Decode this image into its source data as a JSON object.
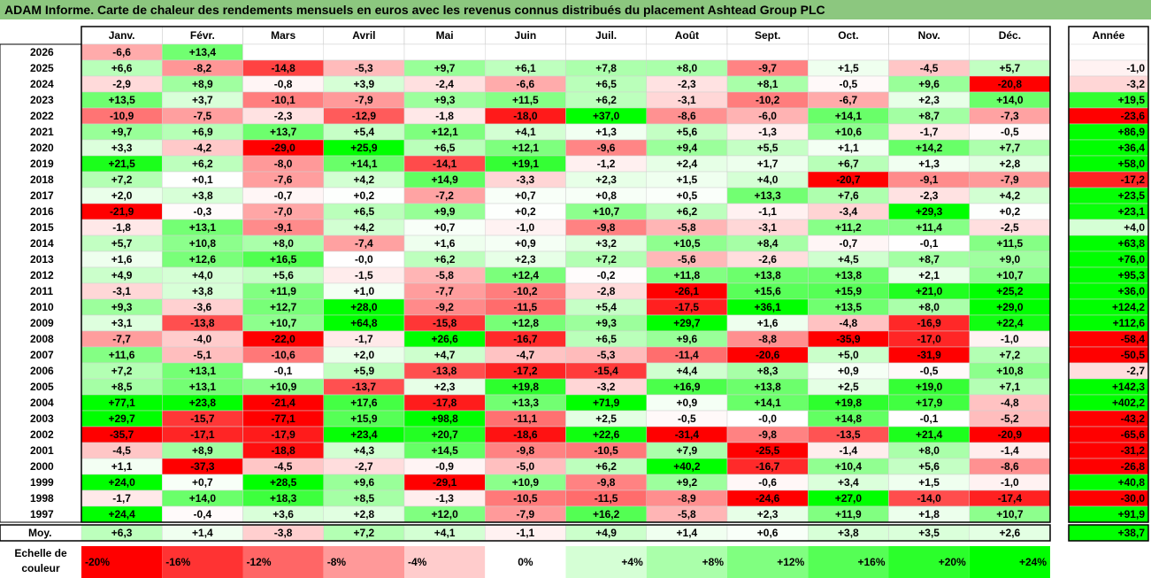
{
  "title": "ADAM Informe. Carte de chaleur des rendements mensuels en euros avec les revenus connus distribués du placement Ashtead Group PLC",
  "chart_data": {
    "type": "heatmap",
    "columns": [
      "Janv.",
      "Févr.",
      "Mars",
      "Avril",
      "Mai",
      "Juin",
      "Juil.",
      "Août",
      "Sept.",
      "Oct.",
      "Nov.",
      "Déc."
    ],
    "year_column_label": "Année",
    "average_row_label": "Moy.",
    "rows": [
      {
        "year": "2026",
        "values": [
          "-6,6",
          "+13,4",
          null,
          null,
          null,
          null,
          null,
          null,
          null,
          null,
          null,
          null
        ],
        "annual": null
      },
      {
        "year": "2025",
        "values": [
          "+6,6",
          "-8,2",
          "-14,8",
          "-5,3",
          "+9,7",
          "+6,1",
          "+7,8",
          "+8,0",
          "-9,7",
          "+1,5",
          "-4,5",
          "+5,7"
        ],
        "annual": "-1,0"
      },
      {
        "year": "2024",
        "values": [
          "-2,9",
          "+8,9",
          "-0,8",
          "+3,9",
          "-2,4",
          "-6,6",
          "+6,5",
          "-2,3",
          "+8,1",
          "-0,5",
          "+9,6",
          "-20,8"
        ],
        "annual": "-3,2"
      },
      {
        "year": "2023",
        "values": [
          "+13,5",
          "+3,7",
          "-10,1",
          "-7,9",
          "+9,3",
          "+11,5",
          "+6,2",
          "-3,1",
          "-10,2",
          "-6,7",
          "+2,3",
          "+14,0"
        ],
        "annual": "+19,5"
      },
      {
        "year": "2022",
        "values": [
          "-10,9",
          "-7,5",
          "-2,3",
          "-12,9",
          "-1,8",
          "-18,0",
          "+37,0",
          "-8,6",
          "-6,0",
          "+14,1",
          "+8,7",
          "-7,3"
        ],
        "annual": "-23,6"
      },
      {
        "year": "2021",
        "values": [
          "+9,7",
          "+6,9",
          "+13,7",
          "+5,4",
          "+12,1",
          "+4,1",
          "+1,3",
          "+5,6",
          "-1,3",
          "+10,6",
          "-1,7",
          "-0,5"
        ],
        "annual": "+86,9"
      },
      {
        "year": "2020",
        "values": [
          "+3,3",
          "-4,2",
          "-29,0",
          "+25,9",
          "+6,5",
          "+12,1",
          "-9,6",
          "+9,4",
          "+5,5",
          "+1,1",
          "+14,2",
          "+7,7"
        ],
        "annual": "+36,4"
      },
      {
        "year": "2019",
        "values": [
          "+21,5",
          "+6,2",
          "-8,0",
          "+14,1",
          "-14,1",
          "+19,1",
          "-1,2",
          "+2,4",
          "+1,7",
          "+6,7",
          "+1,3",
          "+2,8"
        ],
        "annual": "+58,0"
      },
      {
        "year": "2018",
        "values": [
          "+7,2",
          "+0,1",
          "-7,6",
          "+4,2",
          "+14,9",
          "-3,3",
          "+2,3",
          "+1,5",
          "+4,0",
          "-20,7",
          "-9,1",
          "-7,9"
        ],
        "annual": "-17,2"
      },
      {
        "year": "2017",
        "values": [
          "+2,0",
          "+3,8",
          "-0,7",
          "+0,2",
          "-7,2",
          "+0,7",
          "+0,8",
          "+0,5",
          "+13,3",
          "+7,6",
          "-2,3",
          "+4,2"
        ],
        "annual": "+23,5"
      },
      {
        "year": "2016",
        "values": [
          "-21,9",
          "-0,3",
          "-7,0",
          "+6,5",
          "+9,9",
          "+0,2",
          "+10,7",
          "+6,2",
          "-1,1",
          "-3,4",
          "+29,3",
          "+0,2"
        ],
        "annual": "+23,1"
      },
      {
        "year": "2015",
        "values": [
          "-1,8",
          "+13,1",
          "-9,1",
          "+4,2",
          "+0,7",
          "-1,0",
          "-9,8",
          "-5,8",
          "-3,1",
          "+11,2",
          "+11,4",
          "-2,5"
        ],
        "annual": "+4,0"
      },
      {
        "year": "2014",
        "values": [
          "+5,7",
          "+10,8",
          "+8,0",
          "-7,4",
          "+1,6",
          "+0,9",
          "+3,2",
          "+10,5",
          "+8,4",
          "-0,7",
          "-0,1",
          "+11,5"
        ],
        "annual": "+63,8"
      },
      {
        "year": "2013",
        "values": [
          "+1,6",
          "+12,6",
          "+16,5",
          "-0,0",
          "+6,2",
          "+2,3",
          "+7,2",
          "-5,6",
          "-2,6",
          "+4,5",
          "+8,7",
          "+9,0"
        ],
        "annual": "+76,0"
      },
      {
        "year": "2012",
        "values": [
          "+4,9",
          "+4,0",
          "+5,6",
          "-1,5",
          "-5,8",
          "+12,4",
          "-0,2",
          "+11,8",
          "+13,8",
          "+13,8",
          "+2,1",
          "+10,7"
        ],
        "annual": "+95,3"
      },
      {
        "year": "2011",
        "values": [
          "-3,1",
          "+3,8",
          "+11,9",
          "+1,0",
          "-7,7",
          "-10,2",
          "-2,8",
          "-26,1",
          "+15,6",
          "+15,9",
          "+21,0",
          "+25,2"
        ],
        "annual": "+36,0"
      },
      {
        "year": "2010",
        "values": [
          "+9,3",
          "-3,6",
          "+12,7",
          "+28,0",
          "-9,2",
          "-11,5",
          "+5,4",
          "-17,5",
          "+36,1",
          "+13,5",
          "+8,0",
          "+29,0"
        ],
        "annual": "+124,2"
      },
      {
        "year": "2009",
        "values": [
          "+3,1",
          "-13,8",
          "+10,7",
          "+64,8",
          "-15,8",
          "+12,8",
          "+9,3",
          "+29,7",
          "+1,6",
          "-4,8",
          "-16,9",
          "+22,4"
        ],
        "annual": "+112,6"
      },
      {
        "year": "2008",
        "values": [
          "-7,7",
          "-4,0",
          "-22,0",
          "-1,7",
          "+26,6",
          "-16,7",
          "+6,5",
          "+9,6",
          "-8,8",
          "-35,9",
          "-17,0",
          "-1,0"
        ],
        "annual": "-58,4"
      },
      {
        "year": "2007",
        "values": [
          "+11,6",
          "-5,1",
          "-10,6",
          "+2,0",
          "+4,7",
          "-4,7",
          "-5,3",
          "-11,4",
          "-20,6",
          "+5,0",
          "-31,9",
          "+7,2"
        ],
        "annual": "-50,5"
      },
      {
        "year": "2006",
        "values": [
          "+7,2",
          "+13,1",
          "-0,1",
          "+5,9",
          "-13,8",
          "-17,2",
          "-15,4",
          "+4,4",
          "+8,3",
          "+0,9",
          "-0,5",
          "+10,8"
        ],
        "annual": "-2,7"
      },
      {
        "year": "2005",
        "values": [
          "+8,5",
          "+13,1",
          "+10,9",
          "-13,7",
          "+2,3",
          "+19,8",
          "-3,2",
          "+16,9",
          "+13,8",
          "+2,5",
          "+19,0",
          "+7,1"
        ],
        "annual": "+142,3"
      },
      {
        "year": "2004",
        "values": [
          "+77,1",
          "+23,8",
          "-21,4",
          "+17,6",
          "-17,8",
          "+13,3",
          "+71,9",
          "+0,9",
          "+14,1",
          "+19,8",
          "+17,9",
          "-4,8"
        ],
        "annual": "+402,2"
      },
      {
        "year": "2003",
        "values": [
          "+29,7",
          "-15,7",
          "-77,1",
          "+15,9",
          "+98,8",
          "-11,1",
          "+2,5",
          "-0,5",
          "-0,0",
          "+14,8",
          "-0,1",
          "-5,2"
        ],
        "annual": "-43,2"
      },
      {
        "year": "2002",
        "values": [
          "-35,7",
          "-17,1",
          "-17,9",
          "+23,4",
          "+20,7",
          "-18,6",
          "+22,6",
          "-31,4",
          "-9,8",
          "-13,5",
          "+21,4",
          "-20,9"
        ],
        "annual": "-65,6"
      },
      {
        "year": "2001",
        "values": [
          "-4,5",
          "+8,9",
          "-18,8",
          "+4,3",
          "+14,5",
          "-9,8",
          "-10,5",
          "+7,9",
          "-25,5",
          "-1,4",
          "+8,0",
          "-1,4"
        ],
        "annual": "-31,2"
      },
      {
        "year": "2000",
        "values": [
          "+1,1",
          "-37,3",
          "-4,5",
          "-2,7",
          "-0,9",
          "-5,0",
          "+6,2",
          "+40,2",
          "-16,7",
          "+10,4",
          "+5,6",
          "-8,6"
        ],
        "annual": "-26,8"
      },
      {
        "year": "1999",
        "values": [
          "+24,0",
          "+0,7",
          "+28,5",
          "+9,6",
          "-29,1",
          "+10,9",
          "-9,8",
          "+9,2",
          "-0,6",
          "+3,4",
          "+1,5",
          "-1,0"
        ],
        "annual": "+40,8"
      },
      {
        "year": "1998",
        "values": [
          "-1,7",
          "+14,0",
          "+18,3",
          "+8,5",
          "-1,3",
          "-10,5",
          "-11,5",
          "-8,9",
          "-24,6",
          "+27,0",
          "-14,0",
          "-17,4"
        ],
        "annual": "-30,0"
      },
      {
        "year": "1997",
        "values": [
          "+24,4",
          "-0,4",
          "+3,6",
          "+2,8",
          "+12,0",
          "-7,9",
          "+16,2",
          "-5,8",
          "+2,3",
          "+11,9",
          "+1,8",
          "+10,7"
        ],
        "annual": "+91,9"
      }
    ],
    "average": {
      "values": [
        "+6,3",
        "+1,4",
        "-3,8",
        "+7,2",
        "+4,1",
        "-1,1",
        "+4,9",
        "+1,4",
        "+0,6",
        "+3,8",
        "+3,5",
        "+2,6"
      ],
      "annual": "+38,7"
    },
    "color_scale": {
      "label_line1": "Echelle de",
      "label_line2": "couleur",
      "steps": [
        "-20%",
        "-16%",
        "-12%",
        "-8%",
        "-4%",
        "0%",
        "+4%",
        "+8%",
        "+12%",
        "+16%",
        "+20%",
        "+24%"
      ],
      "step_values": [
        -20,
        -16,
        -12,
        -8,
        -4,
        0,
        4,
        8,
        12,
        16,
        20,
        24
      ]
    },
    "colors": {
      "red": "#ff0000",
      "white": "#ffffff",
      "green": "#00ff00",
      "title_bar": "#8cc77f"
    }
  }
}
